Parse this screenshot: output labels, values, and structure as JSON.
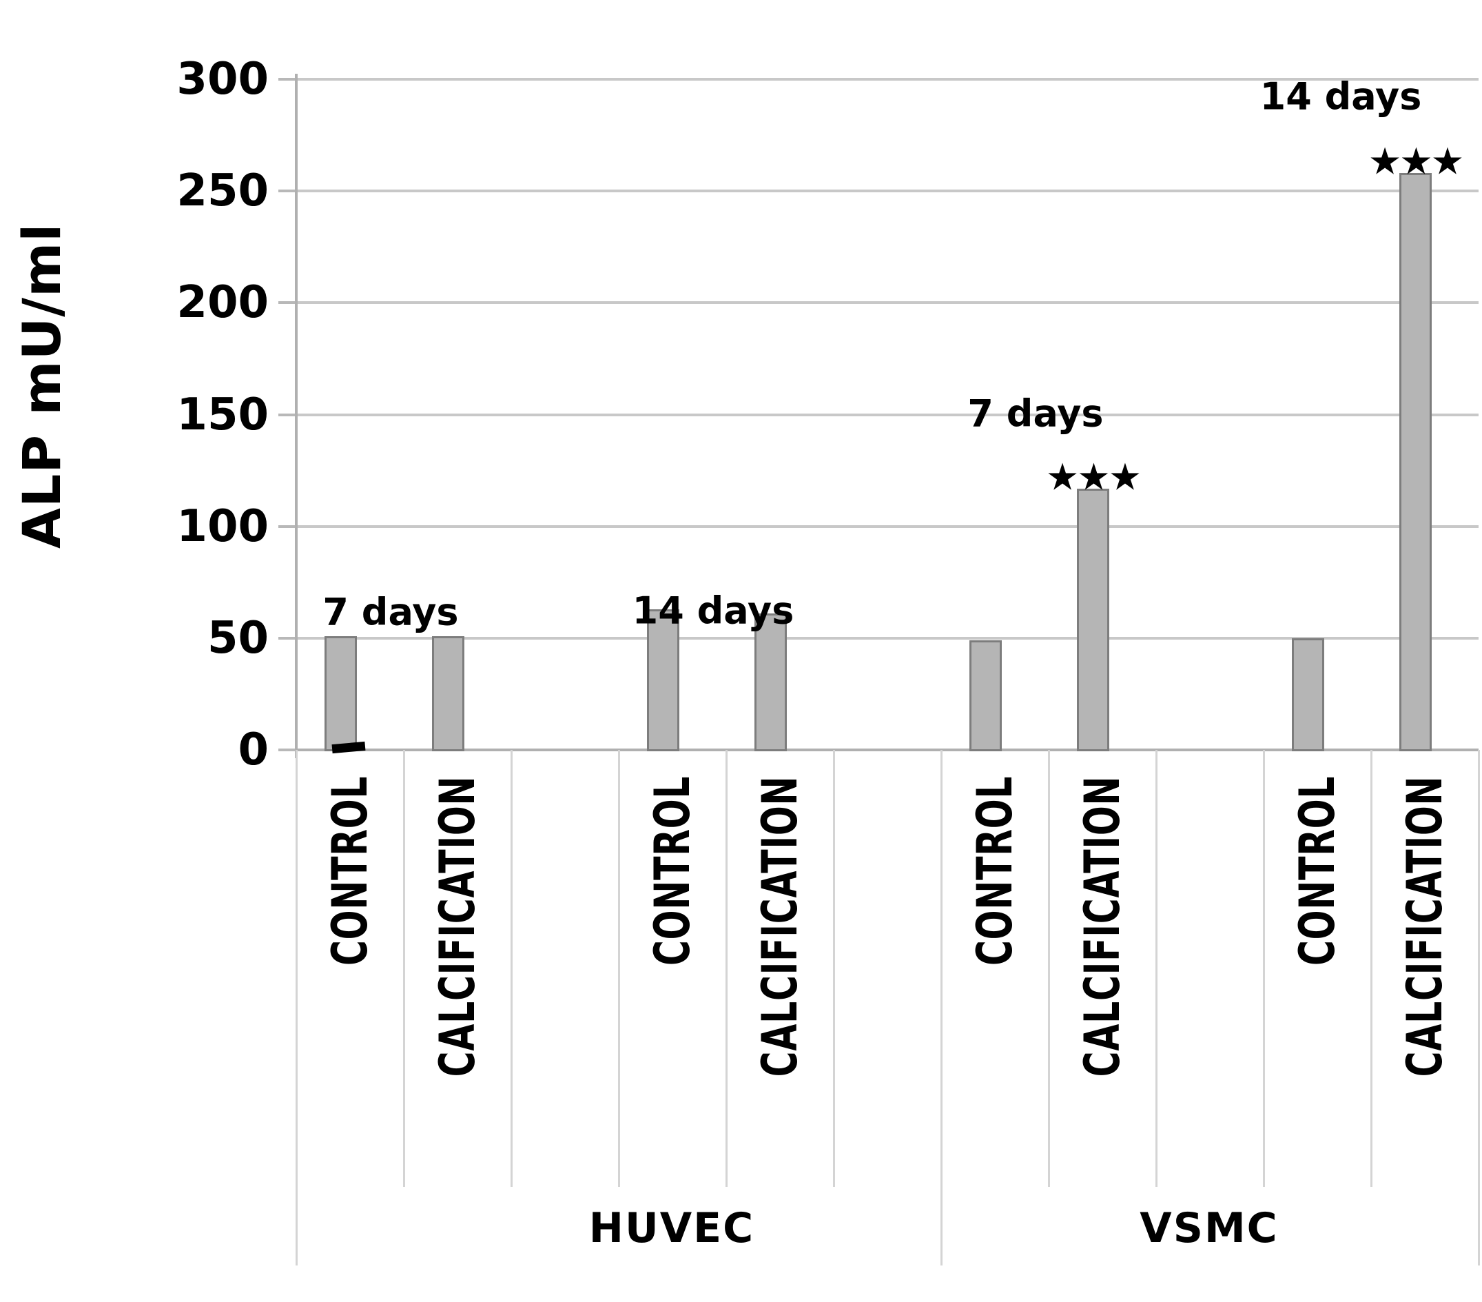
{
  "figure": {
    "background": "#ffffff"
  },
  "chart_data": {
    "type": "bar",
    "title": "",
    "ylabel": "ALP mU/ml",
    "xlabel": "",
    "ylim": [
      0,
      300
    ],
    "yticks": [
      0,
      50,
      100,
      150,
      200,
      250,
      300
    ],
    "grid": true,
    "legend": "none",
    "bar_fill": "#b5b5b5",
    "bar_border": "#7d7d7d",
    "significance_symbol_glyph": "★",
    "stray_mark_under_first_bar": true,
    "categories_level2": [
      "HUVEC",
      "VSMC"
    ],
    "groups": [
      {
        "cell_line": "HUVEC",
        "time_label": "7 days",
        "bars": [
          {
            "condition": "CONTROL",
            "value": 51,
            "significance": ""
          },
          {
            "condition": "CALCIFICATION",
            "value": 51,
            "significance": ""
          }
        ]
      },
      {
        "cell_line": "HUVEC",
        "time_label": "14 days",
        "bars": [
          {
            "condition": "CONTROL",
            "value": 63,
            "significance": ""
          },
          {
            "condition": "CALCIFICATION",
            "value": 61,
            "significance": ""
          }
        ]
      },
      {
        "cell_line": "VSMC",
        "time_label": "7 days",
        "bars": [
          {
            "condition": "CONTROL",
            "value": 49,
            "significance": ""
          },
          {
            "condition": "CALCIFICATION",
            "value": 117,
            "significance": "***"
          }
        ]
      },
      {
        "cell_line": "VSMC",
        "time_label": "14 days",
        "bars": [
          {
            "condition": "CONTROL",
            "value": 50,
            "significance": ""
          },
          {
            "condition": "CALCIFICATION",
            "value": 258,
            "significance": "***"
          }
        ]
      }
    ]
  }
}
